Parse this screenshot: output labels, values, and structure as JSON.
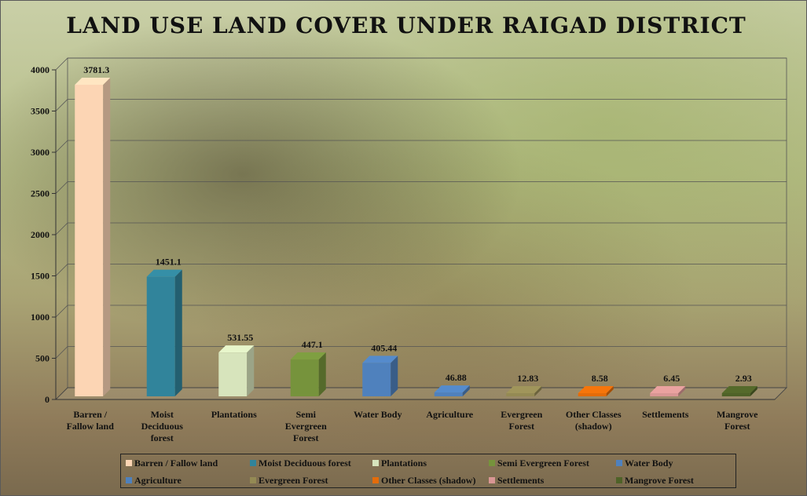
{
  "chart_data": {
    "type": "bar",
    "title": "LAND USE LAND COVER UNDER RAIGAD DISTRICT",
    "xlabel": "",
    "ylabel": "",
    "ylim": [
      0,
      4000
    ],
    "y_ticks": [
      "0",
      "500",
      "1000",
      "1500",
      "2000",
      "2500",
      "3000",
      "3500",
      "4000"
    ],
    "grid": true,
    "legend_position": "bottom",
    "categories": [
      "Barren / Fallow land",
      "Moist Deciduous forest",
      "Plantations",
      "Semi Evergreen Forest",
      "Water Body",
      "Agriculture",
      "Evergreen Forest",
      "Other Classes (shadow)",
      "Settlements",
      "Mangrove Forest"
    ],
    "category_labels": [
      [
        "Barren /",
        "Fallow land"
      ],
      [
        "Moist",
        "Deciduous",
        "forest"
      ],
      [
        "Plantations"
      ],
      [
        "Semi",
        "Evergreen",
        "Forest"
      ],
      [
        "Water Body"
      ],
      [
        "Agriculture"
      ],
      [
        "Evergreen",
        "Forest"
      ],
      [
        "Other Classes",
        "(shadow)"
      ],
      [
        "Settlements"
      ],
      [
        "Mangrove",
        "Forest"
      ]
    ],
    "values": [
      3781.3,
      1451.1,
      531.55,
      447.1,
      405.44,
      46.88,
      12.83,
      8.58,
      6.45,
      2.93
    ],
    "value_labels": [
      "3781.3",
      "1451.1",
      "531.55",
      "447.1",
      "405.44",
      "46.88",
      "12.83",
      "8.58",
      "6.45",
      "2.93"
    ],
    "colors": [
      "#fcd5b4",
      "#31849b",
      "#d7e4bc",
      "#76933c",
      "#4f81bd",
      "#4f81bd",
      "#948a54",
      "#e46c0a",
      "#d99694",
      "#4f6228"
    ],
    "legend": [
      "Barren / Fallow land",
      "Moist Deciduous  forest",
      "Plantations",
      "Semi Evergreen Forest",
      "Water Body",
      "Agriculture",
      "Evergreen Forest",
      "Other Classes (shadow)",
      "Settlements",
      "Mangrove Forest"
    ]
  }
}
